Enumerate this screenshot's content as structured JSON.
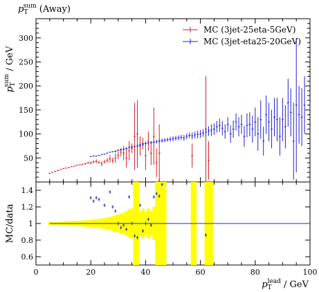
{
  "title": "p_T^sum (Away)",
  "title_parts": {
    "main": "p",
    "sub": "T",
    "sup": "sum",
    "suffix": " (Away)"
  },
  "chart_data": [
    {
      "type": "scatter",
      "panel": "main",
      "ylabel": {
        "main": "p",
        "sub": "T",
        "sup": "sum",
        "suffix": " / GeV"
      },
      "xlim": [
        0,
        100
      ],
      "ylim": [
        0,
        340
      ],
      "yticks": [
        50,
        100,
        150,
        200,
        250,
        300
      ],
      "legend_position": "top-right",
      "series": [
        {
          "name": "MC (3jet-25eta-5GeV)",
          "color": "#d42020",
          "points": [
            [
              5,
              18,
              1
            ],
            [
              6,
              20,
              1
            ],
            [
              7,
              22,
              1
            ],
            [
              8,
              24,
              1
            ],
            [
              9,
              26,
              1
            ],
            [
              10,
              28,
              1
            ],
            [
              11,
              29,
              1
            ],
            [
              12,
              30,
              1
            ],
            [
              13,
              32,
              1
            ],
            [
              14,
              33,
              1
            ],
            [
              15,
              35,
              1
            ],
            [
              16,
              36,
              1
            ],
            [
              17,
              37,
              1
            ],
            [
              18,
              38,
              2
            ],
            [
              19,
              40,
              2
            ],
            [
              20,
              40,
              3
            ],
            [
              21,
              42,
              3
            ],
            [
              22,
              43,
              4
            ],
            [
              23,
              41,
              3
            ],
            [
              24,
              38,
              5
            ],
            [
              25,
              42,
              4
            ],
            [
              26,
              45,
              5
            ],
            [
              27,
              48,
              8
            ],
            [
              28,
              45,
              6
            ],
            [
              29,
              50,
              10
            ],
            [
              30,
              55,
              8
            ],
            [
              31,
              62,
              9
            ],
            [
              32,
              60,
              15
            ],
            [
              33,
              50,
              20
            ],
            [
              34,
              65,
              20
            ],
            [
              35,
              70,
              10
            ],
            [
              36,
              95,
              70
            ],
            [
              37,
              100,
              70
            ],
            [
              38,
              75,
              20
            ],
            [
              39,
              80,
              12
            ],
            [
              40,
              55,
              30
            ],
            [
              41,
              85,
              20
            ],
            [
              42,
              60,
              25
            ],
            [
              43,
              95,
              60
            ],
            [
              44,
              40,
              30
            ],
            [
              45,
              60,
              60
            ],
            [
              57,
              55,
              25
            ],
            [
              62,
              110,
              110
            ],
            [
              63,
              45,
              40
            ]
          ]
        },
        {
          "name": "MC (3jet-eta25-20GeV)",
          "color": "#2020d0",
          "points": [
            [
              20,
              53,
              1
            ],
            [
              21,
              54,
              1
            ],
            [
              22,
              54,
              1
            ],
            [
              23,
              55,
              1
            ],
            [
              24,
              57,
              1
            ],
            [
              25,
              58,
              1
            ],
            [
              26,
              60,
              1
            ],
            [
              27,
              62,
              1
            ],
            [
              28,
              63,
              1
            ],
            [
              29,
              64,
              2
            ],
            [
              30,
              66,
              2
            ],
            [
              31,
              67,
              2
            ],
            [
              32,
              68,
              2
            ],
            [
              33,
              70,
              2
            ],
            [
              34,
              72,
              2
            ],
            [
              35,
              73,
              2
            ],
            [
              36,
              74,
              2
            ],
            [
              37,
              75,
              3
            ],
            [
              38,
              77,
              3
            ],
            [
              39,
              78,
              3
            ],
            [
              40,
              80,
              3
            ],
            [
              41,
              81,
              3
            ],
            [
              42,
              82,
              3
            ],
            [
              43,
              83,
              3
            ],
            [
              44,
              84,
              4
            ],
            [
              45,
              85,
              4
            ],
            [
              46,
              86,
              4
            ],
            [
              47,
              87,
              4
            ],
            [
              48,
              88,
              4
            ],
            [
              49,
              89,
              5
            ],
            [
              50,
              90,
              5
            ],
            [
              51,
              91,
              5
            ],
            [
              52,
              92,
              5
            ],
            [
              53,
              93,
              5
            ],
            [
              54,
              92,
              6
            ],
            [
              55,
              95,
              6
            ],
            [
              56,
              97,
              6
            ],
            [
              57,
              96,
              7
            ],
            [
              58,
              98,
              7
            ],
            [
              59,
              99,
              8
            ],
            [
              60,
              100,
              8
            ],
            [
              61,
              102,
              8
            ],
            [
              62,
              104,
              10
            ],
            [
              63,
              106,
              10
            ],
            [
              64,
              108,
              12
            ],
            [
              65,
              110,
              12
            ],
            [
              66,
              115,
              12
            ],
            [
              67,
              118,
              14
            ],
            [
              68,
              112,
              15
            ],
            [
              69,
              105,
              15
            ],
            [
              70,
              120,
              15
            ],
            [
              71,
              100,
              18
            ],
            [
              72,
              110,
              18
            ],
            [
              73,
              125,
              18
            ],
            [
              74,
              115,
              20
            ],
            [
              75,
              120,
              20
            ],
            [
              76,
              95,
              22
            ],
            [
              77,
              118,
              25
            ],
            [
              78,
              120,
              25
            ],
            [
              79,
              110,
              28
            ],
            [
              80,
              125,
              30
            ],
            [
              81,
              100,
              35
            ],
            [
              82,
              130,
              40
            ],
            [
              83,
              85,
              30
            ],
            [
              84,
              140,
              40
            ],
            [
              85,
              125,
              40
            ],
            [
              86,
              110,
              40
            ],
            [
              87,
              135,
              40
            ],
            [
              88,
              130,
              45
            ],
            [
              89,
              95,
              40
            ],
            [
              90,
              130,
              45
            ],
            [
              91,
              115,
              45
            ],
            [
              92,
              165,
              50
            ],
            [
              93,
              145,
              50
            ],
            [
              94,
              85,
              80
            ],
            [
              95,
              160,
              140
            ],
            [
              96,
              140,
              60
            ],
            [
              97,
              135,
              60
            ],
            [
              98,
              160,
              60
            ]
          ]
        }
      ]
    },
    {
      "type": "scatter",
      "panel": "ratio",
      "ylabel": "MC/data",
      "xlabel": {
        "main": "p",
        "sub": "T",
        "sup": "lead",
        "suffix": " / GeV"
      },
      "xlim": [
        0,
        100
      ],
      "ylim": [
        0.5,
        1.5
      ],
      "yticks": [
        0.6,
        0.8,
        1,
        1.2,
        1.4
      ],
      "xticks": [
        0,
        20,
        40,
        60,
        80,
        100
      ],
      "reference_line": 1,
      "band_color": "#ffff00",
      "band": [
        [
          5,
          0.02
        ],
        [
          6,
          0.02
        ],
        [
          7,
          0.02
        ],
        [
          8,
          0.02
        ],
        [
          9,
          0.02
        ],
        [
          10,
          0.025
        ],
        [
          11,
          0.025
        ],
        [
          12,
          0.025
        ],
        [
          13,
          0.03
        ],
        [
          14,
          0.03
        ],
        [
          15,
          0.03
        ],
        [
          16,
          0.035
        ],
        [
          17,
          0.035
        ],
        [
          18,
          0.04
        ],
        [
          19,
          0.04
        ],
        [
          20,
          0.045
        ],
        [
          21,
          0.05
        ],
        [
          22,
          0.05
        ],
        [
          23,
          0.055
        ],
        [
          24,
          0.06
        ],
        [
          25,
          0.065
        ],
        [
          26,
          0.07
        ],
        [
          27,
          0.08
        ],
        [
          28,
          0.09
        ],
        [
          29,
          0.1
        ],
        [
          30,
          0.11
        ],
        [
          31,
          0.12
        ],
        [
          32,
          0.13
        ],
        [
          33,
          0.15
        ],
        [
          34,
          0.17
        ],
        [
          35,
          0.18
        ],
        [
          36,
          0.5
        ],
        [
          37,
          0.5
        ],
        [
          38,
          0.15
        ],
        [
          39,
          0.18
        ],
        [
          40,
          0.14
        ],
        [
          41,
          0.18
        ],
        [
          42,
          0.15
        ],
        [
          43,
          0.2
        ],
        [
          44,
          0.5
        ],
        [
          45,
          0.5
        ],
        [
          46,
          0.5
        ],
        [
          47,
          0.5
        ],
        [
          57,
          0.5
        ],
        [
          58,
          0.5
        ],
        [
          62,
          0.5
        ],
        [
          63,
          0.5
        ],
        [
          64,
          0.5
        ]
      ],
      "series": [
        {
          "name": "MC (3jet-25eta-5GeV)",
          "color": "#d42020",
          "points": []
        },
        {
          "name": "MC (3jet-eta25-20GeV)",
          "color": "#2020d0",
          "points": [
            [
              20,
              1.31,
              0.02
            ],
            [
              21,
              1.27,
              0.02
            ],
            [
              22,
              1.31,
              0.02
            ],
            [
              23,
              1.29,
              0.02
            ],
            [
              25,
              1.22,
              0.02
            ],
            [
              27,
              1.38,
              0.02
            ],
            [
              28,
              1.2,
              0.02
            ],
            [
              29,
              1.15,
              0.02
            ],
            [
              30,
              1.0,
              0.02
            ],
            [
              31,
              0.95,
              0.02
            ],
            [
              32,
              0.98,
              0.02
            ],
            [
              33,
              0.93,
              0.02
            ],
            [
              34,
              1.32,
              0.02
            ],
            [
              35,
              1.0,
              0.02
            ],
            [
              36,
              0.85,
              0.02
            ],
            [
              37,
              0.83,
              0.02
            ],
            [
              38,
              1.22,
              0.02
            ],
            [
              39,
              0.91,
              0.02
            ],
            [
              40,
              1.0,
              0.02
            ],
            [
              41,
              1.05,
              0.02
            ],
            [
              42,
              0.98,
              0.02
            ],
            [
              43,
              1.32,
              0.02
            ],
            [
              44,
              1.36,
              0.02
            ],
            [
              45,
              1.33,
              0.02
            ],
            [
              46,
              1.47,
              0.02
            ],
            [
              62,
              0.86,
              0.02
            ]
          ]
        }
      ]
    }
  ]
}
